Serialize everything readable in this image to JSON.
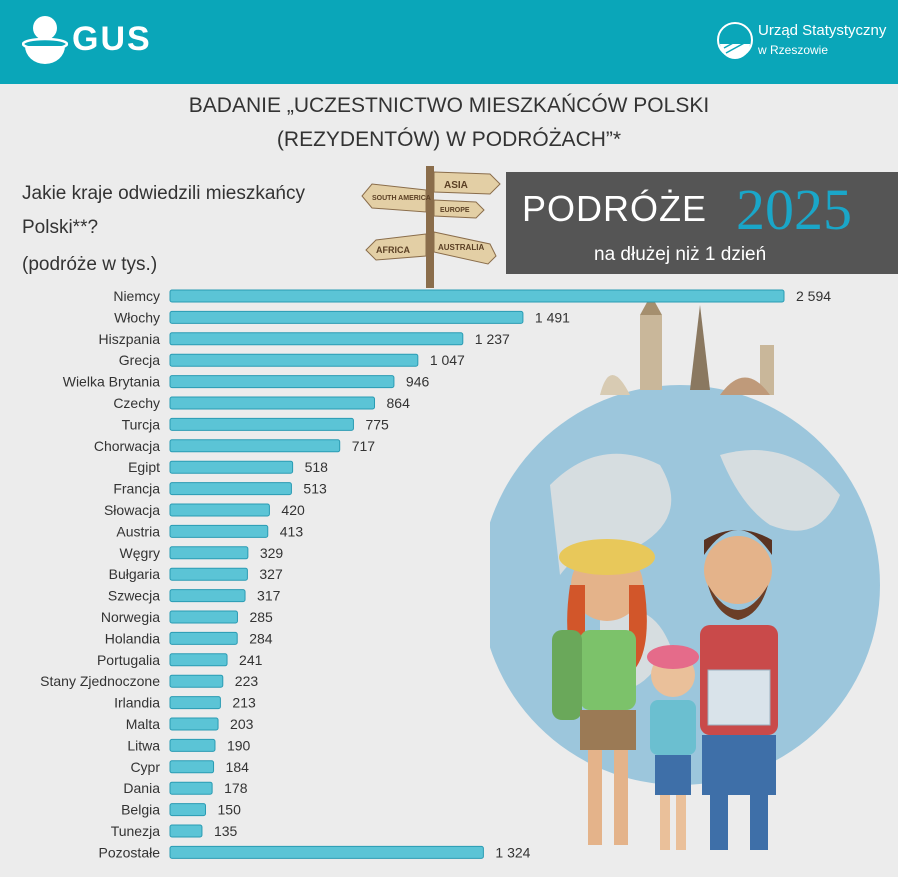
{
  "header": {
    "logo_text": "GUS",
    "office_name": "Urząd Statystyczny",
    "office_city": "w Rzeszowie"
  },
  "title": {
    "line1": "BADANIE „UCZESTNICTWO MIESZKAŃCÓW POLSKI",
    "line2": "(REZYDENTÓW) W PODRÓŻACH”*"
  },
  "question": {
    "line1": "Jakie kraje odwiedzili mieszkańcy",
    "line2": "Polski**?",
    "line3": "(podróże w tys.)"
  },
  "signpost": {
    "labels": [
      "ASIA",
      "SOUTH AMERICA",
      "EUROPE",
      "AFRICA",
      "AUSTRALIA"
    ]
  },
  "banner": {
    "word": "PODRÓŻE",
    "year": "2025",
    "subtitle": "na dłużej niż 1 dzień"
  },
  "colors": {
    "header": "#0aa6b9",
    "bar_fill": "#5bc4d6",
    "bar_stroke": "#2a9bb3",
    "banner_bg": "#555555",
    "year": "#1aa6c8"
  },
  "chart_data": {
    "type": "bar",
    "orientation": "horizontal",
    "categories": [
      "Niemcy",
      "Włochy",
      "Hiszpania",
      "Grecja",
      "Wielka Brytania",
      "Czechy",
      "Turcja",
      "Chorwacja",
      "Egipt",
      "Francja",
      "Słowacja",
      "Austria",
      "Węgry",
      "Bułgaria",
      "Szwecja",
      "Norwegia",
      "Holandia",
      "Portugalia",
      "Stany Zjednoczone",
      "Irlandia",
      "Malta",
      "Litwa",
      "Cypr",
      "Dania",
      "Belgia",
      "Tunezja",
      "Pozostałe"
    ],
    "values": [
      2594,
      1491,
      1237,
      1047,
      946,
      864,
      775,
      717,
      518,
      513,
      420,
      413,
      329,
      327,
      317,
      285,
      284,
      241,
      223,
      213,
      203,
      190,
      184,
      178,
      150,
      135,
      1324
    ],
    "value_labels": [
      "2 594",
      "1 491",
      "1 237",
      "1 047",
      "946",
      "864",
      "775",
      "717",
      "518",
      "513",
      "420",
      "413",
      "329",
      "327",
      "317",
      "285",
      "284",
      "241",
      "223",
      "213",
      "203",
      "190",
      "184",
      "178",
      "150",
      "135",
      "1 324"
    ],
    "xlim": [
      0,
      2594
    ],
    "grid": false,
    "legend": "none"
  }
}
